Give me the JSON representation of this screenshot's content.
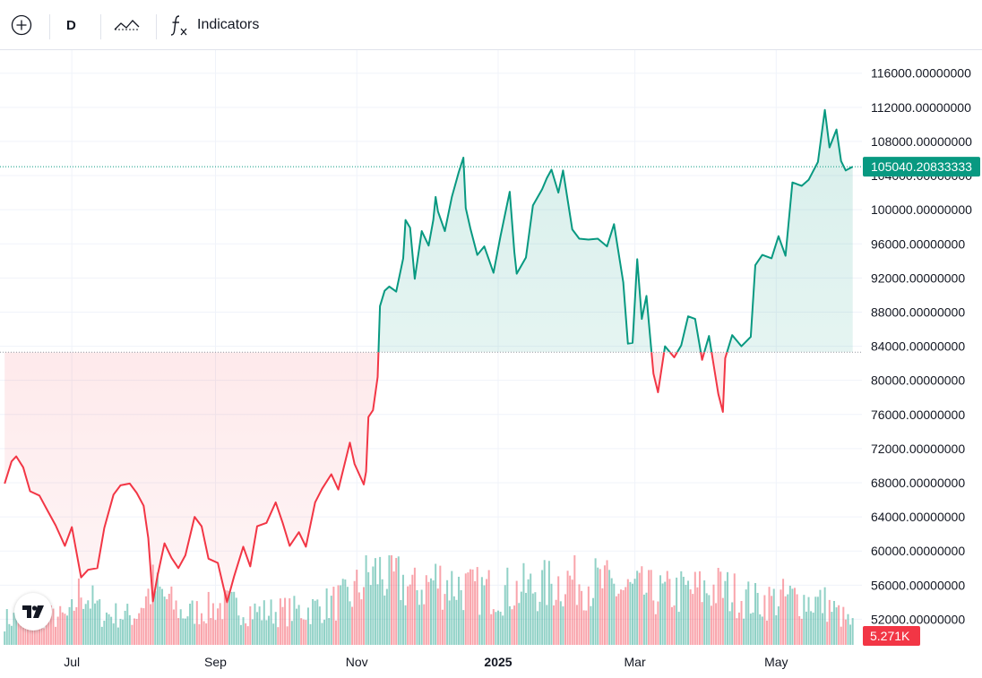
{
  "toolbar": {
    "add_symbol_icon": "plus-circle-icon",
    "interval": "D",
    "compare_icon": "compare-icon",
    "indicators_icon": "fx-icon",
    "indicators_label": "Indicators"
  },
  "colors": {
    "up": "#089981",
    "down": "#f23645",
    "grid": "#f0f3fa",
    "axis_text": "#131722"
  },
  "chart_data": {
    "type": "area",
    "style": "baseline",
    "baseline_value": 83300,
    "last_price_label": "105040.20833333",
    "last_volume_label": "5.271K",
    "ylim": [
      49000,
      118700
    ],
    "y_ticks": [
      {
        "value": 116000,
        "label": "116000.00000000"
      },
      {
        "value": 112000,
        "label": "112000.00000000"
      },
      {
        "value": 108000,
        "label": "108000.00000000"
      },
      {
        "value": 104000,
        "label": "104000.00000000"
      },
      {
        "value": 100000,
        "label": "100000.00000000"
      },
      {
        "value": 96000,
        "label": "96000.00000000"
      },
      {
        "value": 92000,
        "label": "92000.00000000"
      },
      {
        "value": 88000,
        "label": "88000.00000000"
      },
      {
        "value": 84000,
        "label": "84000.00000000"
      },
      {
        "value": 80000,
        "label": "80000.00000000"
      },
      {
        "value": 76000,
        "label": "76000.00000000"
      },
      {
        "value": 72000,
        "label": "72000.00000000"
      },
      {
        "value": 68000,
        "label": "68000.00000000"
      },
      {
        "value": 64000,
        "label": "64000.00000000"
      },
      {
        "value": 60000,
        "label": "60000.00000000"
      },
      {
        "value": 56000,
        "label": "56000.00000000"
      },
      {
        "value": 52000,
        "label": "52000.00000000"
      }
    ],
    "x_ticks": [
      {
        "date": "2024-07-01",
        "label": "Jul",
        "bold": false
      },
      {
        "date": "2024-09-01",
        "label": "Sep",
        "bold": false
      },
      {
        "date": "2024-11-01",
        "label": "Nov",
        "bold": false
      },
      {
        "date": "2025-01-01",
        "label": "2025",
        "bold": true
      },
      {
        "date": "2025-03-01",
        "label": "Mar",
        "bold": false
      },
      {
        "date": "2025-05-01",
        "label": "May",
        "bold": false
      }
    ],
    "series": [
      {
        "points": [
          [
            "2024-06-02",
            67900
          ],
          [
            "2024-06-05",
            70500
          ],
          [
            "2024-06-07",
            71100
          ],
          [
            "2024-06-10",
            69800
          ],
          [
            "2024-06-13",
            67000
          ],
          [
            "2024-06-17",
            66500
          ],
          [
            "2024-06-20",
            65000
          ],
          [
            "2024-06-24",
            63000
          ],
          [
            "2024-06-28",
            60600
          ],
          [
            "2024-07-01",
            62800
          ],
          [
            "2024-07-05",
            56900
          ],
          [
            "2024-07-08",
            57800
          ],
          [
            "2024-07-12",
            58000
          ],
          [
            "2024-07-15",
            62700
          ],
          [
            "2024-07-19",
            66600
          ],
          [
            "2024-07-22",
            67700
          ],
          [
            "2024-07-26",
            67900
          ],
          [
            "2024-07-29",
            66800
          ],
          [
            "2024-08-01",
            65300
          ],
          [
            "2024-08-03",
            61500
          ],
          [
            "2024-08-05",
            54100
          ],
          [
            "2024-08-07",
            57100
          ],
          [
            "2024-08-10",
            60900
          ],
          [
            "2024-08-13",
            59200
          ],
          [
            "2024-08-16",
            58000
          ],
          [
            "2024-08-19",
            59500
          ],
          [
            "2024-08-23",
            64000
          ],
          [
            "2024-08-26",
            62900
          ],
          [
            "2024-08-29",
            59100
          ],
          [
            "2024-09-02",
            58600
          ],
          [
            "2024-09-06",
            54000
          ],
          [
            "2024-09-09",
            57000
          ],
          [
            "2024-09-13",
            60500
          ],
          [
            "2024-09-16",
            58200
          ],
          [
            "2024-09-19",
            62900
          ],
          [
            "2024-09-23",
            63300
          ],
          [
            "2024-09-27",
            65700
          ],
          [
            "2024-09-30",
            63300
          ],
          [
            "2024-10-03",
            60600
          ],
          [
            "2024-10-07",
            62200
          ],
          [
            "2024-10-10",
            60500
          ],
          [
            "2024-10-14",
            65700
          ],
          [
            "2024-10-17",
            67300
          ],
          [
            "2024-10-21",
            69000
          ],
          [
            "2024-10-24",
            67200
          ],
          [
            "2024-10-29",
            72700
          ],
          [
            "2024-10-31",
            70200
          ],
          [
            "2024-11-04",
            67800
          ],
          [
            "2024-11-05",
            69300
          ],
          [
            "2024-11-06",
            75700
          ],
          [
            "2024-11-08",
            76500
          ],
          [
            "2024-11-10",
            80400
          ],
          [
            "2024-11-11",
            88700
          ],
          [
            "2024-11-13",
            90500
          ],
          [
            "2024-11-15",
            91000
          ],
          [
            "2024-11-18",
            90400
          ],
          [
            "2024-11-21",
            94300
          ],
          [
            "2024-11-22",
            98800
          ],
          [
            "2024-11-24",
            97900
          ],
          [
            "2024-11-26",
            91900
          ],
          [
            "2024-11-29",
            97500
          ],
          [
            "2024-12-02",
            95800
          ],
          [
            "2024-12-04",
            98800
          ],
          [
            "2024-12-05",
            101500
          ],
          [
            "2024-12-06",
            99800
          ],
          [
            "2024-12-09",
            97500
          ],
          [
            "2024-12-12",
            101500
          ],
          [
            "2024-12-15",
            104400
          ],
          [
            "2024-12-17",
            106100
          ],
          [
            "2024-12-18",
            100200
          ],
          [
            "2024-12-20",
            97800
          ],
          [
            "2024-12-23",
            94700
          ],
          [
            "2024-12-26",
            95700
          ],
          [
            "2024-12-30",
            92600
          ],
          [
            "2025-01-02",
            96900
          ],
          [
            "2025-01-06",
            102100
          ],
          [
            "2025-01-08",
            95000
          ],
          [
            "2025-01-09",
            92500
          ],
          [
            "2025-01-13",
            94400
          ],
          [
            "2025-01-16",
            100500
          ],
          [
            "2025-01-20",
            102400
          ],
          [
            "2025-01-22",
            103700
          ],
          [
            "2025-01-24",
            104700
          ],
          [
            "2025-01-27",
            102000
          ],
          [
            "2025-01-29",
            104600
          ],
          [
            "2025-02-02",
            97700
          ],
          [
            "2025-02-05",
            96600
          ],
          [
            "2025-02-09",
            96500
          ],
          [
            "2025-02-13",
            96600
          ],
          [
            "2025-02-17",
            95700
          ],
          [
            "2025-02-20",
            98300
          ],
          [
            "2025-02-24",
            91500
          ],
          [
            "2025-02-26",
            84300
          ],
          [
            "2025-02-28",
            84400
          ],
          [
            "2025-03-02",
            94200
          ],
          [
            "2025-03-04",
            87200
          ],
          [
            "2025-03-06",
            89900
          ],
          [
            "2025-03-09",
            80800
          ],
          [
            "2025-03-11",
            78600
          ],
          [
            "2025-03-14",
            84000
          ],
          [
            "2025-03-18",
            82700
          ],
          [
            "2025-03-21",
            84100
          ],
          [
            "2025-03-24",
            87500
          ],
          [
            "2025-03-27",
            87200
          ],
          [
            "2025-03-30",
            82400
          ],
          [
            "2025-04-02",
            85200
          ],
          [
            "2025-04-06",
            78400
          ],
          [
            "2025-04-08",
            76300
          ],
          [
            "2025-04-09",
            82600
          ],
          [
            "2025-04-12",
            85300
          ],
          [
            "2025-04-16",
            84000
          ],
          [
            "2025-04-20",
            85100
          ],
          [
            "2025-04-22",
            93500
          ],
          [
            "2025-04-25",
            94700
          ],
          [
            "2025-04-29",
            94300
          ],
          [
            "2025-05-02",
            96900
          ],
          [
            "2025-05-05",
            94600
          ],
          [
            "2025-05-08",
            103200
          ],
          [
            "2025-05-12",
            102800
          ],
          [
            "2025-05-15",
            103500
          ],
          [
            "2025-05-19",
            105600
          ],
          [
            "2025-05-22",
            111700
          ],
          [
            "2025-05-24",
            107300
          ],
          [
            "2025-05-27",
            109400
          ],
          [
            "2025-05-29",
            105700
          ],
          [
            "2025-05-31",
            104600
          ],
          [
            "2025-06-03",
            105040
          ]
        ]
      }
    ],
    "volume": {
      "label_units": "BTC",
      "note": "volume histogram at the bottom of the pane",
      "bars": [
        [
          "2024-06-02",
          1.4
        ],
        [
          "2024-06-16",
          1.6
        ],
        [
          "2024-06-30",
          1.5
        ],
        [
          "2024-07-05",
          3.1
        ],
        [
          "2024-07-14",
          1.7
        ],
        [
          "2024-07-28",
          1.6
        ],
        [
          "2024-08-05",
          3.2
        ],
        [
          "2024-08-18",
          1.7
        ],
        [
          "2024-09-06",
          2.2
        ],
        [
          "2024-09-20",
          1.8
        ],
        [
          "2024-10-10",
          1.9
        ],
        [
          "2024-10-29",
          2.6
        ],
        [
          "2024-11-06",
          3.8
        ],
        [
          "2024-11-11",
          4.0
        ],
        [
          "2024-11-13",
          3.8
        ],
        [
          "2024-11-21",
          3.4
        ],
        [
          "2024-11-26",
          3.0
        ],
        [
          "2024-12-05",
          3.6
        ],
        [
          "2024-12-17",
          3.2
        ],
        [
          "2024-12-20",
          3.0
        ],
        [
          "2025-01-07",
          3.0
        ],
        [
          "2025-01-20",
          3.2
        ],
        [
          "2025-02-03",
          3.7
        ],
        [
          "2025-02-25",
          3.0
        ],
        [
          "2025-03-03",
          3.0
        ],
        [
          "2025-03-10",
          2.8
        ],
        [
          "2025-04-07",
          3.1
        ],
        [
          "2025-04-22",
          2.4
        ],
        [
          "2025-05-08",
          2.6
        ],
        [
          "2025-05-22",
          2.3
        ],
        [
          "2025-06-03",
          1.1
        ]
      ]
    }
  }
}
